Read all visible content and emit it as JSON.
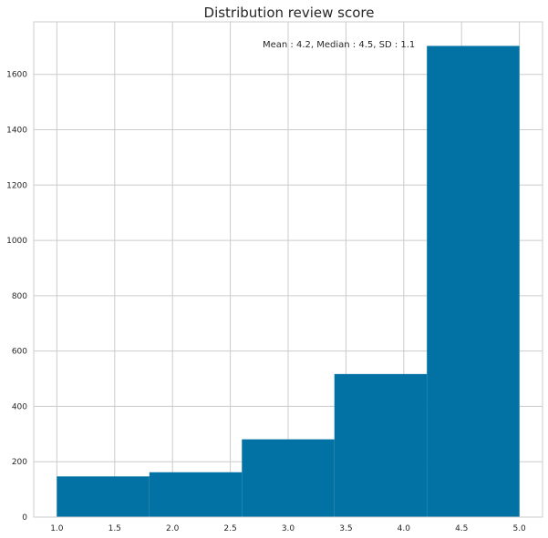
{
  "chart_data": {
    "type": "bar",
    "title": "Distribution review score",
    "annotation": "Mean : 4.2, Median :  4.5, SD :  1.1",
    "bin_edges": [
      1.0,
      1.8,
      2.6,
      3.4,
      4.2,
      5.0
    ],
    "values": [
      147,
      162,
      281,
      517,
      1703
    ],
    "xlim": [
      0.8,
      5.2
    ],
    "ylim": [
      0,
      1790
    ],
    "xticks": [
      1.0,
      1.5,
      2.0,
      2.5,
      3.0,
      3.5,
      4.0,
      4.5,
      5.0
    ],
    "xtick_labels": [
      "1.0",
      "1.5",
      "2.0",
      "2.5",
      "3.0",
      "3.5",
      "4.0",
      "4.5",
      "5.0"
    ],
    "yticks": [
      0,
      200,
      400,
      600,
      800,
      1000,
      1200,
      1400,
      1600
    ],
    "ytick_labels": [
      "0",
      "200",
      "400",
      "600",
      "800",
      "1000",
      "1200",
      "1400",
      "1600"
    ],
    "grid": true,
    "colors": {
      "bar": "#0172a3",
      "grid": "#cccccc",
      "axis": "#cccccc",
      "text": "#262626"
    }
  }
}
